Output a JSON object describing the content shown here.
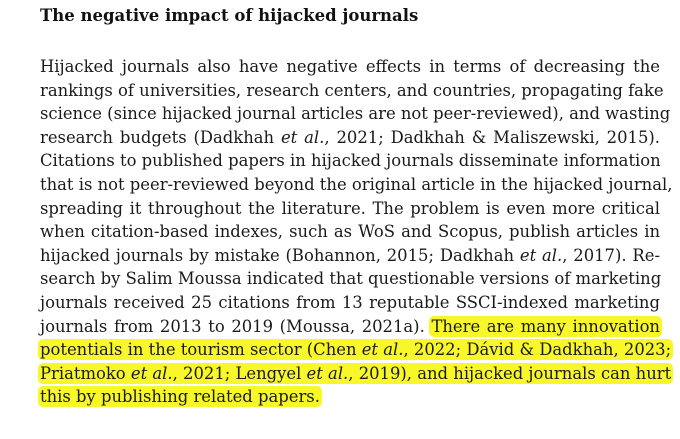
{
  "section": {
    "heading": "The negative impact of hijacked journals"
  },
  "paragraph": {
    "lines": [
      "Hijacked journals also have negative effects in terms of decreasing the",
      "rankings of universities, research centers, and countries, propagating fake",
      "science (since hijacked journal articles are not peer-reviewed), and wasting",
      [
        "research budgets (Dadkhah ",
        "et al.",
        ", 2021; Dadkhah & Maliszewski, 2015)."
      ],
      "Citations to published papers in hijacked journals disseminate information",
      "that is not peer-reviewed beyond the original article in the hijacked journal,",
      "spreading it throughout the literature. The problem is even more critical",
      "when citation-based indexes, such as WoS and Scopus, publish articles in",
      [
        "hijacked journals by mistake (Bohannon, 2015; Dadkhah ",
        "et al.",
        ", 2017). Re-"
      ],
      "search by Salim Moussa indicated that questionable versions of marketing",
      "journals received 25 citations from 13 reputable SSCI-indexed marketing"
    ],
    "line12_plain": "journals from 2013 to 2019 (Moussa, 2021a).",
    "line12_highlight": "There are many innovation",
    "line13": [
      "potentials in the tourism sector (Chen ",
      "et al.",
      ", 2022; Dávid & Dadkhah, 2023;"
    ],
    "line14": [
      "Priatmoko ",
      "et al.",
      ", 2021; Lengyel ",
      "et al.",
      ", 2019), and hijacked journals can hurt"
    ],
    "line15": "this by publishing related papers."
  },
  "colors": {
    "highlight": "#f7f72a",
    "text": "#1a1a1a"
  }
}
